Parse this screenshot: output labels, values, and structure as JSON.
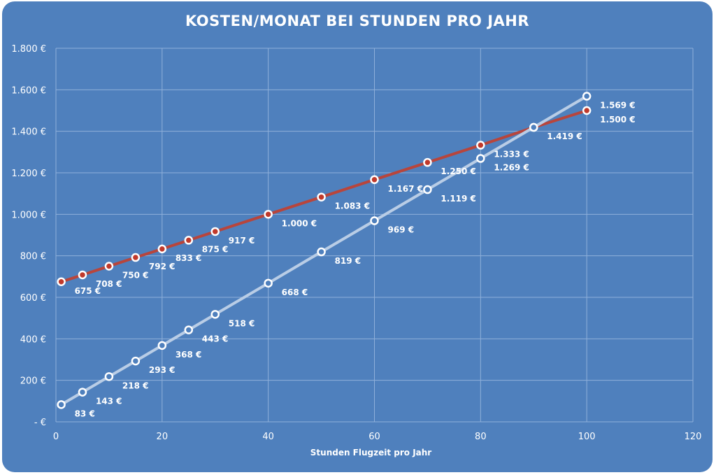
{
  "chart_data": {
    "type": "line",
    "title": "KOSTEN/MONAT BEI STUNDEN PRO JAHR",
    "xlabel": "Stunden Flugzeit pro Jahr",
    "ylabel": "",
    "xlim": [
      0,
      120
    ],
    "ylim": [
      0,
      1800
    ],
    "x_ticks": [
      "0",
      "20",
      "40",
      "60",
      "80",
      "100",
      "120"
    ],
    "y_ticks": [
      "-  €",
      "200 €",
      "400 €",
      "600 €",
      "800 €",
      "1.000 €",
      "1.200 €",
      "1.400 €",
      "1.600 €",
      "1.800 €"
    ],
    "grid": true,
    "legend": "none",
    "series": [
      {
        "color": "#b8453c",
        "marker_fill": "#c0392b",
        "points": [
          {
            "x": 1,
            "y": 675,
            "label": "675 €"
          },
          {
            "x": 5,
            "y": 708,
            "label": "708 €"
          },
          {
            "x": 10,
            "y": 750,
            "label": "750 €"
          },
          {
            "x": 15,
            "y": 792,
            "label": "792 €"
          },
          {
            "x": 20,
            "y": 833,
            "label": "833 €"
          },
          {
            "x": 25,
            "y": 875,
            "label": "875 €"
          },
          {
            "x": 30,
            "y": 917,
            "label": "917 €"
          },
          {
            "x": 40,
            "y": 1000,
            "label": "1.000 €"
          },
          {
            "x": 50,
            "y": 1083,
            "label": "1.083 €"
          },
          {
            "x": 60,
            "y": 1167,
            "label": "1.167 €"
          },
          {
            "x": 70,
            "y": 1250,
            "label": "1.250 €"
          },
          {
            "x": 80,
            "y": 1333,
            "label": "1.333 €"
          },
          {
            "x": 90,
            "y": 1419,
            "label": "1.419 €"
          },
          {
            "x": 100,
            "y": 1500,
            "label": "1.500 €"
          }
        ]
      },
      {
        "color": "#b9cde6",
        "marker_fill": "#4f80bd",
        "points": [
          {
            "x": 1,
            "y": 83,
            "label": "83 €"
          },
          {
            "x": 5,
            "y": 143,
            "label": "143 €"
          },
          {
            "x": 10,
            "y": 218,
            "label": "218 €"
          },
          {
            "x": 15,
            "y": 293,
            "label": "293 €"
          },
          {
            "x": 20,
            "y": 368,
            "label": "368 €"
          },
          {
            "x": 25,
            "y": 443,
            "label": "443 €"
          },
          {
            "x": 30,
            "y": 518,
            "label": "518 €"
          },
          {
            "x": 40,
            "y": 668,
            "label": "668 €"
          },
          {
            "x": 50,
            "y": 819,
            "label": "819 €"
          },
          {
            "x": 60,
            "y": 969,
            "label": "969 €"
          },
          {
            "x": 70,
            "y": 1119,
            "label": "1.119 €"
          },
          {
            "x": 80,
            "y": 1269,
            "label": "1.269 €"
          },
          {
            "x": 90,
            "y": 1419,
            "label": ""
          },
          {
            "x": 100,
            "y": 1569,
            "label": "1.569 €"
          }
        ]
      }
    ]
  },
  "colors": {
    "background": "#4f80bd",
    "grid": "#8fb0da",
    "text": "#ffffff"
  }
}
